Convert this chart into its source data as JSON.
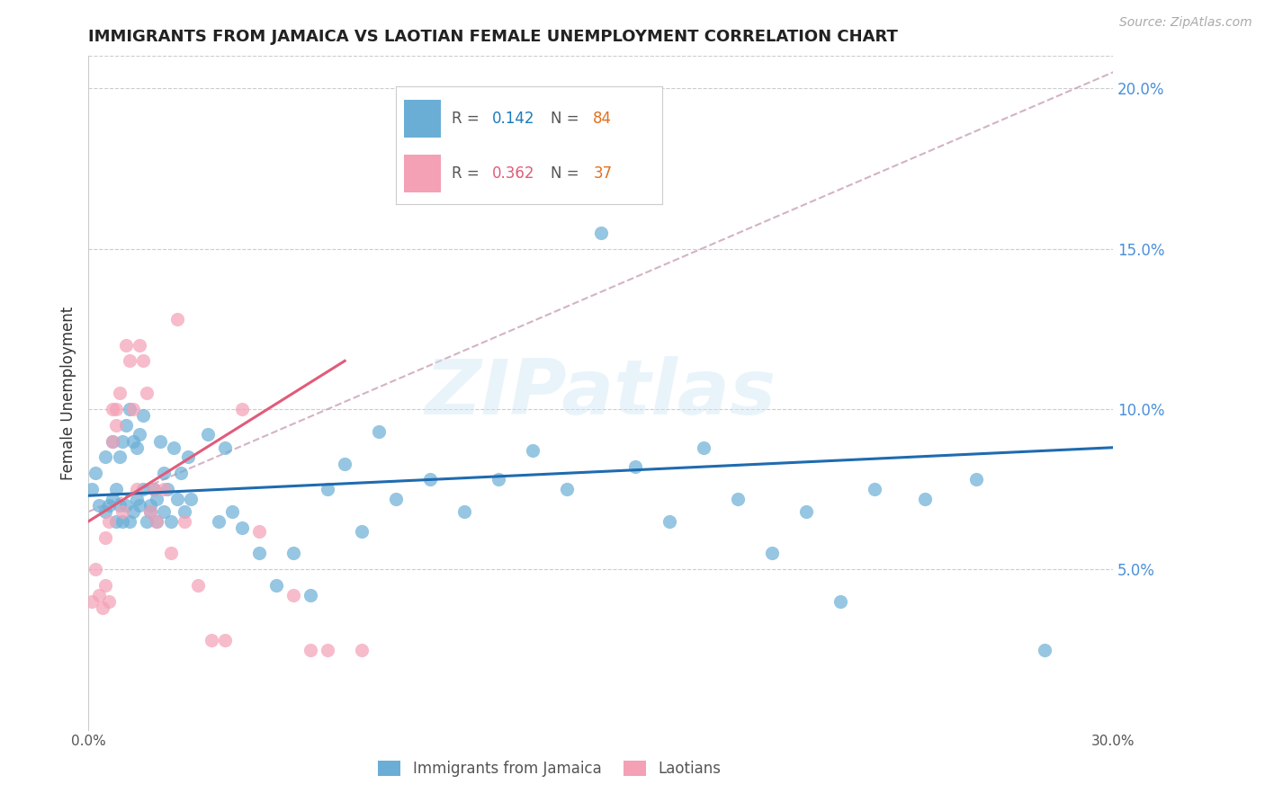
{
  "title": "IMMIGRANTS FROM JAMAICA VS LAOTIAN FEMALE UNEMPLOYMENT CORRELATION CHART",
  "source": "Source: ZipAtlas.com",
  "ylabel": "Female Unemployment",
  "watermark": "ZIPatlas",
  "xlim": [
    0.0,
    0.3
  ],
  "ylim": [
    0.0,
    0.21
  ],
  "ytick_right_labels": [
    "5.0%",
    "10.0%",
    "15.0%",
    "20.0%"
  ],
  "ytick_right_values": [
    0.05,
    0.1,
    0.15,
    0.2
  ],
  "legend1_r": "0.142",
  "legend1_n": "84",
  "legend2_r": "0.362",
  "legend2_n": "37",
  "legend1_label": "Immigrants from Jamaica",
  "legend2_label": "Laotians",
  "blue_color": "#6aaed6",
  "pink_color": "#f4a0b5",
  "line_blue_color": "#1f6bb0",
  "line_pink_color": "#e05c7a",
  "dashed_line_color": "#c8a0b8",
  "r_value_blue_color": "#1a7abf",
  "n_value_color": "#e07020",
  "right_axis_color": "#4a90d9",
  "blue_scatter_x": [
    0.001,
    0.002,
    0.003,
    0.005,
    0.005,
    0.006,
    0.007,
    0.007,
    0.008,
    0.008,
    0.009,
    0.009,
    0.01,
    0.01,
    0.011,
    0.011,
    0.012,
    0.012,
    0.013,
    0.013,
    0.014,
    0.014,
    0.015,
    0.015,
    0.016,
    0.016,
    0.017,
    0.018,
    0.018,
    0.019,
    0.02,
    0.02,
    0.021,
    0.022,
    0.022,
    0.023,
    0.024,
    0.025,
    0.026,
    0.027,
    0.028,
    0.029,
    0.03,
    0.035,
    0.038,
    0.04,
    0.042,
    0.045,
    0.05,
    0.055,
    0.06,
    0.065,
    0.07,
    0.075,
    0.08,
    0.085,
    0.09,
    0.1,
    0.11,
    0.12,
    0.13,
    0.14,
    0.15,
    0.16,
    0.17,
    0.18,
    0.19,
    0.2,
    0.21,
    0.22,
    0.23,
    0.245,
    0.26,
    0.28
  ],
  "blue_scatter_y": [
    0.075,
    0.08,
    0.07,
    0.068,
    0.085,
    0.07,
    0.072,
    0.09,
    0.065,
    0.075,
    0.07,
    0.085,
    0.065,
    0.09,
    0.07,
    0.095,
    0.065,
    0.1,
    0.068,
    0.09,
    0.072,
    0.088,
    0.07,
    0.092,
    0.075,
    0.098,
    0.065,
    0.07,
    0.068,
    0.075,
    0.065,
    0.072,
    0.09,
    0.068,
    0.08,
    0.075,
    0.065,
    0.088,
    0.072,
    0.08,
    0.068,
    0.085,
    0.072,
    0.092,
    0.065,
    0.088,
    0.068,
    0.063,
    0.055,
    0.045,
    0.055,
    0.042,
    0.075,
    0.083,
    0.062,
    0.093,
    0.072,
    0.078,
    0.068,
    0.078,
    0.087,
    0.075,
    0.155,
    0.082,
    0.065,
    0.088,
    0.072,
    0.055,
    0.068,
    0.04,
    0.075,
    0.072,
    0.078,
    0.025
  ],
  "pink_scatter_x": [
    0.001,
    0.002,
    0.003,
    0.004,
    0.005,
    0.005,
    0.006,
    0.006,
    0.007,
    0.007,
    0.008,
    0.008,
    0.009,
    0.01,
    0.011,
    0.012,
    0.013,
    0.014,
    0.015,
    0.016,
    0.017,
    0.018,
    0.019,
    0.02,
    0.022,
    0.024,
    0.026,
    0.028,
    0.032,
    0.036,
    0.04,
    0.045,
    0.05,
    0.06,
    0.065,
    0.07,
    0.08
  ],
  "pink_scatter_y": [
    0.04,
    0.05,
    0.042,
    0.038,
    0.06,
    0.045,
    0.065,
    0.04,
    0.1,
    0.09,
    0.1,
    0.095,
    0.105,
    0.068,
    0.12,
    0.115,
    0.1,
    0.075,
    0.12,
    0.115,
    0.105,
    0.068,
    0.075,
    0.065,
    0.075,
    0.055,
    0.128,
    0.065,
    0.045,
    0.028,
    0.028,
    0.1,
    0.062,
    0.042,
    0.025,
    0.025,
    0.025
  ],
  "blue_line_x": [
    0.0,
    0.3
  ],
  "blue_line_y": [
    0.073,
    0.088
  ],
  "pink_line_x": [
    0.0,
    0.075
  ],
  "pink_line_y": [
    0.065,
    0.115
  ],
  "dashed_line_x": [
    0.0,
    0.3
  ],
  "dashed_line_y": [
    0.068,
    0.205
  ]
}
